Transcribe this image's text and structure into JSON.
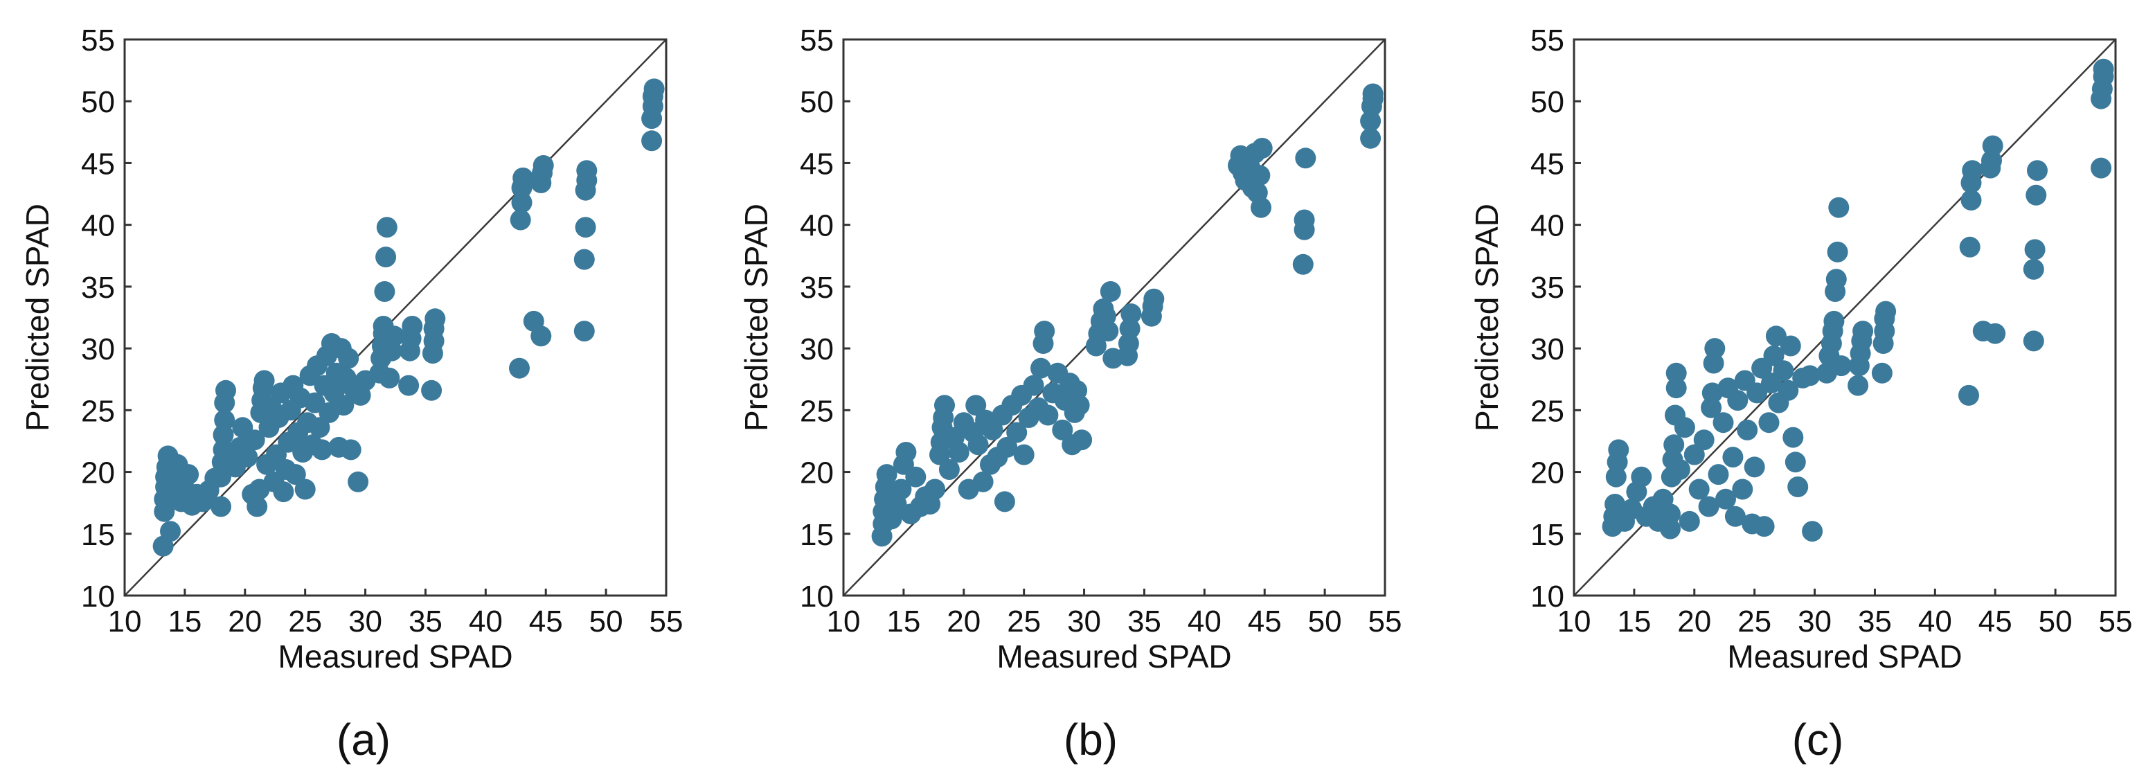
{
  "figure": {
    "caption_labels": [
      "(a)",
      "(b)",
      "(c)"
    ]
  },
  "colors": {
    "point": "#3c7a9c",
    "axis": "#333333",
    "identity_line": "#3a3a3a"
  },
  "chart_data": [
    {
      "type": "scatter",
      "panel": "(a)",
      "xlabel": "Measured SPAD",
      "ylabel": "Predicted SPAD",
      "xlim": [
        10,
        55
      ],
      "ylim": [
        10,
        55
      ],
      "xticks": [
        10,
        15,
        20,
        25,
        30,
        35,
        40,
        45,
        50,
        55
      ],
      "yticks": [
        10,
        15,
        20,
        25,
        30,
        35,
        40,
        45,
        50,
        55
      ],
      "reference_line": "1:1",
      "grid": false,
      "points": [
        [
          13.2,
          14.0
        ],
        [
          13.3,
          16.8
        ],
        [
          13.3,
          17.8
        ],
        [
          13.4,
          18.8
        ],
        [
          13.4,
          19.6
        ],
        [
          13.5,
          20.4
        ],
        [
          13.6,
          21.3
        ],
        [
          13.8,
          15.2
        ],
        [
          14.0,
          18.2
        ],
        [
          14.2,
          19.4
        ],
        [
          14.4,
          20.6
        ],
        [
          14.7,
          17.6
        ],
        [
          15.0,
          18.6
        ],
        [
          15.3,
          19.8
        ],
        [
          15.6,
          17.3
        ],
        [
          16.0,
          18.2
        ],
        [
          16.5,
          17.6
        ],
        [
          17.0,
          18.5
        ],
        [
          17.5,
          19.5
        ],
        [
          18.0,
          17.2
        ],
        [
          18.0,
          19.6
        ],
        [
          18.1,
          20.8
        ],
        [
          18.2,
          21.8
        ],
        [
          18.2,
          23.0
        ],
        [
          18.3,
          24.2
        ],
        [
          18.3,
          25.6
        ],
        [
          18.4,
          26.6
        ],
        [
          18.8,
          21.2
        ],
        [
          19.2,
          20.4
        ],
        [
          19.6,
          22.0
        ],
        [
          19.8,
          23.6
        ],
        [
          20.2,
          21.2
        ],
        [
          20.6,
          18.2
        ],
        [
          20.8,
          22.6
        ],
        [
          21.0,
          17.2
        ],
        [
          21.2,
          18.6
        ],
        [
          21.3,
          24.8
        ],
        [
          21.4,
          25.8
        ],
        [
          21.5,
          26.8
        ],
        [
          21.6,
          27.4
        ],
        [
          21.8,
          20.6
        ],
        [
          22.0,
          23.6
        ],
        [
          22.2,
          25.2
        ],
        [
          22.4,
          19.2
        ],
        [
          22.6,
          21.4
        ],
        [
          22.8,
          24.4
        ],
        [
          23.0,
          26.4
        ],
        [
          23.2,
          18.4
        ],
        [
          23.4,
          20.2
        ],
        [
          23.6,
          22.4
        ],
        [
          23.8,
          25.0
        ],
        [
          24.0,
          27.0
        ],
        [
          24.2,
          19.8
        ],
        [
          24.4,
          23.2
        ],
        [
          24.6,
          26.0
        ],
        [
          24.8,
          21.6
        ],
        [
          25.0,
          18.6
        ],
        [
          25.2,
          24.0
        ],
        [
          25.4,
          27.8
        ],
        [
          25.6,
          22.2
        ],
        [
          25.8,
          25.6
        ],
        [
          26.0,
          28.6
        ],
        [
          26.2,
          23.6
        ],
        [
          26.4,
          21.8
        ],
        [
          26.6,
          27.0
        ],
        [
          26.8,
          29.4
        ],
        [
          27.0,
          24.8
        ],
        [
          27.2,
          30.4
        ],
        [
          27.4,
          26.4
        ],
        [
          27.6,
          28.0
        ],
        [
          27.8,
          22.0
        ],
        [
          28.0,
          30.0
        ],
        [
          28.2,
          25.4
        ],
        [
          28.4,
          27.6
        ],
        [
          28.6,
          29.2
        ],
        [
          28.8,
          21.8
        ],
        [
          29.0,
          26.8
        ],
        [
          29.4,
          19.2
        ],
        [
          29.6,
          26.2
        ],
        [
          30.0,
          27.4
        ],
        [
          31.2,
          28.0
        ],
        [
          31.3,
          29.2
        ],
        [
          31.4,
          30.2
        ],
        [
          31.5,
          31.2
        ],
        [
          31.5,
          31.8
        ],
        [
          31.6,
          34.6
        ],
        [
          31.7,
          37.4
        ],
        [
          31.8,
          39.8
        ],
        [
          32.0,
          27.6
        ],
        [
          32.2,
          29.8
        ],
        [
          32.4,
          31.0
        ],
        [
          33.6,
          27.0
        ],
        [
          33.7,
          29.8
        ],
        [
          33.8,
          30.8
        ],
        [
          33.9,
          31.8
        ],
        [
          35.5,
          26.6
        ],
        [
          35.6,
          29.6
        ],
        [
          35.7,
          30.6
        ],
        [
          35.7,
          31.6
        ],
        [
          35.8,
          32.4
        ],
        [
          42.8,
          28.4
        ],
        [
          42.9,
          40.4
        ],
        [
          43.0,
          41.8
        ],
        [
          43.0,
          43.0
        ],
        [
          43.1,
          43.8
        ],
        [
          44.0,
          32.2
        ],
        [
          44.6,
          31.0
        ],
        [
          44.6,
          43.4
        ],
        [
          44.7,
          44.2
        ],
        [
          44.8,
          44.8
        ],
        [
          48.2,
          31.4
        ],
        [
          48.2,
          37.2
        ],
        [
          48.3,
          39.8
        ],
        [
          48.3,
          42.8
        ],
        [
          48.4,
          43.6
        ],
        [
          48.4,
          44.4
        ],
        [
          53.8,
          46.8
        ],
        [
          53.8,
          48.6
        ],
        [
          53.9,
          49.6
        ],
        [
          53.9,
          50.4
        ],
        [
          54.0,
          51.0
        ]
      ]
    },
    {
      "type": "scatter",
      "panel": "(b)",
      "xlabel": "Measured SPAD",
      "ylabel": "Predicted SPAD",
      "xlim": [
        10,
        55
      ],
      "ylim": [
        10,
        55
      ],
      "xticks": [
        10,
        15,
        20,
        25,
        30,
        35,
        40,
        45,
        50,
        55
      ],
      "yticks": [
        10,
        15,
        20,
        25,
        30,
        35,
        40,
        45,
        50,
        55
      ],
      "reference_line": "1:1",
      "grid": false,
      "points": [
        [
          13.2,
          14.8
        ],
        [
          13.3,
          15.8
        ],
        [
          13.3,
          16.8
        ],
        [
          13.4,
          17.8
        ],
        [
          13.5,
          18.8
        ],
        [
          13.6,
          19.8
        ],
        [
          14.0,
          16.2
        ],
        [
          14.4,
          17.4
        ],
        [
          14.8,
          18.6
        ],
        [
          15.0,
          20.6
        ],
        [
          15.2,
          21.6
        ],
        [
          15.6,
          16.6
        ],
        [
          16.0,
          19.6
        ],
        [
          16.4,
          17.2
        ],
        [
          16.8,
          18.0
        ],
        [
          17.2,
          17.4
        ],
        [
          17.6,
          18.6
        ],
        [
          18.0,
          21.4
        ],
        [
          18.1,
          22.4
        ],
        [
          18.2,
          23.6
        ],
        [
          18.3,
          24.4
        ],
        [
          18.4,
          25.4
        ],
        [
          18.8,
          20.2
        ],
        [
          19.2,
          22.8
        ],
        [
          19.6,
          21.6
        ],
        [
          20.0,
          24.0
        ],
        [
          20.4,
          18.6
        ],
        [
          20.8,
          23.2
        ],
        [
          21.0,
          25.4
        ],
        [
          21.2,
          22.2
        ],
        [
          21.6,
          19.2
        ],
        [
          21.8,
          24.2
        ],
        [
          22.2,
          20.6
        ],
        [
          22.4,
          23.4
        ],
        [
          22.8,
          21.2
        ],
        [
          23.2,
          24.6
        ],
        [
          23.4,
          17.6
        ],
        [
          23.6,
          22.0
        ],
        [
          24.0,
          25.4
        ],
        [
          24.4,
          23.2
        ],
        [
          24.8,
          26.2
        ],
        [
          25.0,
          21.4
        ],
        [
          25.4,
          24.4
        ],
        [
          25.8,
          27.0
        ],
        [
          26.2,
          25.2
        ],
        [
          26.4,
          28.4
        ],
        [
          26.6,
          30.4
        ],
        [
          26.7,
          31.4
        ],
        [
          27.0,
          24.6
        ],
        [
          27.4,
          26.4
        ],
        [
          27.8,
          28.0
        ],
        [
          28.2,
          23.4
        ],
        [
          28.4,
          25.8
        ],
        [
          28.8,
          27.2
        ],
        [
          29.0,
          22.2
        ],
        [
          29.2,
          24.8
        ],
        [
          29.4,
          26.6
        ],
        [
          29.6,
          25.4
        ],
        [
          29.8,
          22.6
        ],
        [
          31.0,
          30.2
        ],
        [
          31.2,
          31.2
        ],
        [
          31.4,
          32.2
        ],
        [
          31.6,
          33.2
        ],
        [
          31.8,
          32.6
        ],
        [
          32.0,
          31.4
        ],
        [
          32.2,
          34.6
        ],
        [
          32.4,
          29.2
        ],
        [
          33.6,
          29.4
        ],
        [
          33.7,
          30.4
        ],
        [
          33.8,
          31.6
        ],
        [
          33.9,
          32.8
        ],
        [
          35.6,
          32.6
        ],
        [
          35.7,
          33.4
        ],
        [
          35.8,
          34.0
        ],
        [
          42.8,
          44.8
        ],
        [
          43.0,
          45.6
        ],
        [
          43.2,
          44.2
        ],
        [
          43.4,
          43.6
        ],
        [
          43.6,
          45.2
        ],
        [
          43.8,
          44.6
        ],
        [
          44.0,
          43.0
        ],
        [
          44.2,
          45.8
        ],
        [
          44.4,
          42.6
        ],
        [
          44.6,
          44.0
        ],
        [
          44.7,
          41.4
        ],
        [
          44.8,
          46.2
        ],
        [
          48.2,
          36.8
        ],
        [
          48.3,
          39.6
        ],
        [
          48.3,
          40.4
        ],
        [
          48.4,
          45.4
        ],
        [
          53.8,
          47.0
        ],
        [
          53.8,
          48.4
        ],
        [
          53.9,
          49.6
        ],
        [
          54.0,
          50.2
        ],
        [
          54.0,
          50.6
        ]
      ]
    },
    {
      "type": "scatter",
      "panel": "(c)",
      "xlabel": "Measured SPAD",
      "ylabel": "Predicted SPAD",
      "xlim": [
        10,
        55
      ],
      "ylim": [
        10,
        55
      ],
      "xticks": [
        10,
        15,
        20,
        25,
        30,
        35,
        40,
        45,
        50,
        55
      ],
      "yticks": [
        10,
        15,
        20,
        25,
        30,
        35,
        40,
        45,
        50,
        55
      ],
      "reference_line": "1:1",
      "grid": false,
      "points": [
        [
          13.2,
          15.6
        ],
        [
          13.3,
          16.4
        ],
        [
          13.4,
          17.4
        ],
        [
          13.5,
          19.6
        ],
        [
          13.6,
          20.8
        ],
        [
          13.7,
          21.8
        ],
        [
          14.2,
          16.0
        ],
        [
          14.8,
          17.0
        ],
        [
          15.2,
          18.4
        ],
        [
          15.6,
          19.6
        ],
        [
          16.0,
          16.4
        ],
        [
          16.6,
          17.2
        ],
        [
          17.0,
          16.0
        ],
        [
          17.4,
          17.8
        ],
        [
          18.0,
          15.4
        ],
        [
          18.0,
          16.6
        ],
        [
          18.1,
          19.6
        ],
        [
          18.2,
          21.0
        ],
        [
          18.3,
          22.2
        ],
        [
          18.4,
          24.6
        ],
        [
          18.5,
          26.8
        ],
        [
          18.5,
          28.0
        ],
        [
          18.8,
          20.2
        ],
        [
          19.2,
          23.6
        ],
        [
          19.6,
          16.0
        ],
        [
          20.0,
          21.4
        ],
        [
          20.4,
          18.6
        ],
        [
          20.8,
          22.6
        ],
        [
          21.2,
          17.2
        ],
        [
          21.4,
          25.2
        ],
        [
          21.5,
          26.4
        ],
        [
          21.6,
          28.8
        ],
        [
          21.7,
          30.0
        ],
        [
          22.0,
          19.8
        ],
        [
          22.4,
          24.0
        ],
        [
          22.6,
          17.8
        ],
        [
          22.8,
          26.8
        ],
        [
          23.2,
          21.2
        ],
        [
          23.4,
          16.4
        ],
        [
          23.6,
          25.8
        ],
        [
          24.0,
          18.6
        ],
        [
          24.2,
          27.4
        ],
        [
          24.4,
          23.4
        ],
        [
          24.8,
          15.8
        ],
        [
          25.0,
          20.4
        ],
        [
          25.2,
          26.4
        ],
        [
          25.6,
          28.4
        ],
        [
          25.8,
          15.6
        ],
        [
          26.2,
          24.0
        ],
        [
          26.4,
          27.2
        ],
        [
          26.6,
          29.4
        ],
        [
          26.8,
          31.0
        ],
        [
          27.0,
          25.6
        ],
        [
          27.4,
          28.2
        ],
        [
          27.8,
          26.6
        ],
        [
          28.0,
          30.2
        ],
        [
          28.2,
          22.8
        ],
        [
          28.4,
          20.8
        ],
        [
          28.6,
          18.8
        ],
        [
          29.0,
          27.6
        ],
        [
          29.6,
          27.8
        ],
        [
          29.8,
          15.2
        ],
        [
          31.0,
          28.0
        ],
        [
          31.2,
          29.4
        ],
        [
          31.4,
          30.4
        ],
        [
          31.5,
          31.4
        ],
        [
          31.6,
          32.2
        ],
        [
          31.7,
          34.6
        ],
        [
          31.8,
          35.6
        ],
        [
          31.9,
          37.8
        ],
        [
          32.0,
          41.4
        ],
        [
          32.2,
          28.6
        ],
        [
          33.6,
          27.0
        ],
        [
          33.7,
          28.6
        ],
        [
          33.8,
          29.6
        ],
        [
          33.9,
          30.6
        ],
        [
          34.0,
          31.4
        ],
        [
          35.6,
          28.0
        ],
        [
          35.7,
          30.4
        ],
        [
          35.8,
          31.4
        ],
        [
          35.8,
          32.4
        ],
        [
          35.9,
          33.0
        ],
        [
          42.8,
          26.2
        ],
        [
          42.9,
          38.2
        ],
        [
          43.0,
          42.0
        ],
        [
          43.0,
          43.4
        ],
        [
          43.1,
          44.4
        ],
        [
          44.0,
          31.4
        ],
        [
          44.6,
          44.6
        ],
        [
          44.7,
          45.2
        ],
        [
          44.8,
          46.4
        ],
        [
          45.0,
          31.2
        ],
        [
          48.2,
          30.6
        ],
        [
          48.2,
          36.4
        ],
        [
          48.3,
          38.0
        ],
        [
          48.4,
          42.4
        ],
        [
          48.5,
          44.4
        ],
        [
          53.8,
          44.6
        ],
        [
          53.8,
          50.2
        ],
        [
          53.9,
          51.0
        ],
        [
          54.0,
          52.0
        ],
        [
          54.0,
          52.6
        ]
      ]
    }
  ]
}
